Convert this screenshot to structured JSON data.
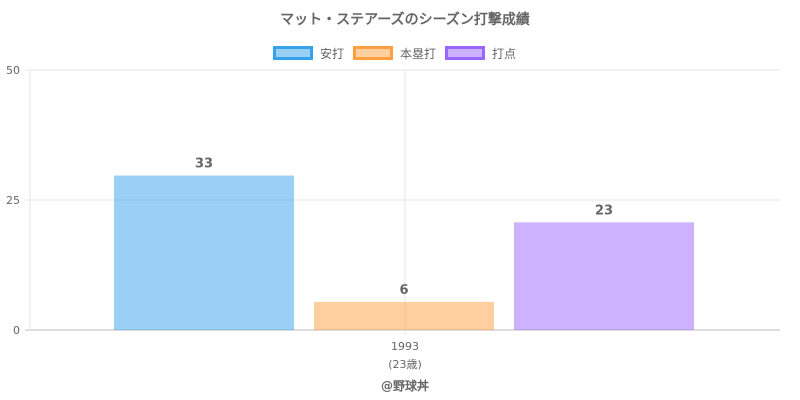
{
  "chart_data": {
    "type": "bar",
    "title": "マット・ステアーズのシーズン打撃成績",
    "categories": [
      "1993"
    ],
    "category_sublabels": [
      "(23歳)"
    ],
    "series": [
      {
        "name": "安打",
        "values": [
          33
        ],
        "color": "#36a2eb"
      },
      {
        "name": "本塁打",
        "values": [
          6
        ],
        "color": "#ff9f40"
      },
      {
        "name": "打点",
        "values": [
          23
        ],
        "color": "#9966ff"
      }
    ],
    "ylim": [
      0,
      50
    ],
    "yticks": [
      "0",
      "25",
      "50"
    ],
    "grid": true,
    "legend": "top",
    "data_labels": [
      "33",
      "6",
      "23"
    ]
  },
  "footer": {
    "credit": "@野球丼"
  }
}
